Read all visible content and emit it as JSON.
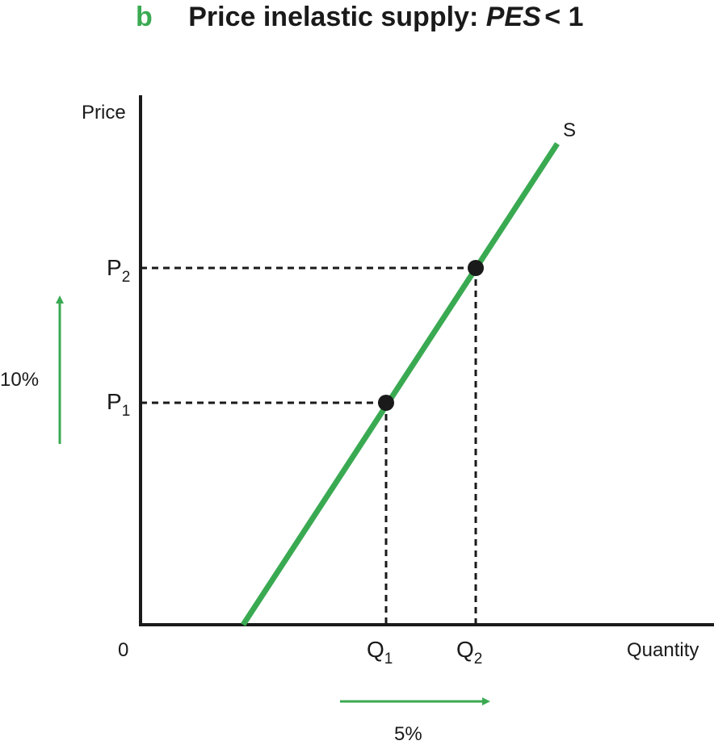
{
  "title": {
    "letter": "b",
    "text": "Price inelastic supply: ",
    "pes": "PES",
    "condition": " < 1"
  },
  "axes": {
    "y_label": "Price",
    "x_label": "Quantity",
    "origin": "0"
  },
  "curve": {
    "label": "S"
  },
  "prices": [
    {
      "main": "P",
      "sub": "2"
    },
    {
      "main": "P",
      "sub": "1"
    }
  ],
  "quantities": [
    {
      "main": "Q",
      "sub": "1"
    },
    {
      "main": "Q",
      "sub": "2"
    }
  ],
  "changes": {
    "price_change": "10%",
    "quantity_change": "5%"
  },
  "colors": {
    "accent": "#3aaa52",
    "ink": "#1a1a1a"
  }
}
